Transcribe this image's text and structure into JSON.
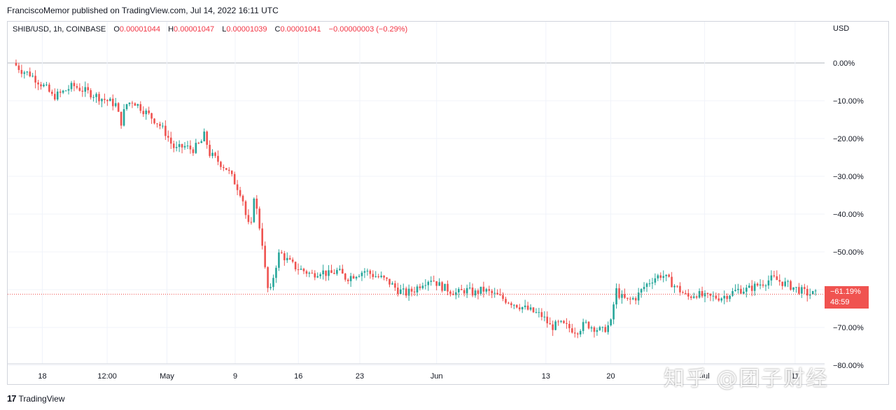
{
  "header": {
    "published": "FranciscoMemor published on TradingView.com, Jul 14, 2022 16:11 UTC"
  },
  "legend": {
    "symbol": "SHIB/USD, 1h, COINBASE",
    "o_label": "O",
    "o_value": "0.00001044",
    "h_label": "H",
    "h_value": "0.00001047",
    "l_label": "L",
    "l_value": "0.00001039",
    "c_label": "C",
    "c_value": "0.00001041",
    "change": "−0.00000003 (−0.29%)"
  },
  "price_tag": {
    "percent": "−61.19%",
    "countdown": "48:59",
    "color": "#f05350"
  },
  "footer": {
    "brand": "TradingView"
  },
  "watermark": {
    "text": "知乎 @团子财经"
  },
  "colors": {
    "up": "#26a69a",
    "down": "#ef5350",
    "grid": "#f0f3fa"
  },
  "chart_data": {
    "type": "line",
    "style": "candlestick",
    "yunit": "USD",
    "yscale": "percent",
    "ylim": [
      -80,
      5
    ],
    "y_ticks": [
      {
        "value": 0,
        "label": "0.00%"
      },
      {
        "value": -10,
        "label": "−10.00%"
      },
      {
        "value": -20,
        "label": "−20.00%"
      },
      {
        "value": -30,
        "label": "−30.00%"
      },
      {
        "value": -40,
        "label": "−40.00%"
      },
      {
        "value": -50,
        "label": "−50.00%"
      },
      {
        "value": -60,
        "label": "−60.00%"
      },
      {
        "value": -70,
        "label": "−70.00%"
      },
      {
        "value": -80,
        "label": "−80.00%"
      }
    ],
    "x_ticks": [
      {
        "t": 1.7,
        "label": "18"
      },
      {
        "t": 5.5,
        "label": "12:00"
      },
      {
        "t": 9.0,
        "label": "May"
      },
      {
        "t": 13.0,
        "label": "9"
      },
      {
        "t": 16.7,
        "label": "16"
      },
      {
        "t": 20.3,
        "label": "23"
      },
      {
        "t": 24.8,
        "label": "Jun"
      },
      {
        "t": 31.2,
        "label": "13"
      },
      {
        "t": 35.0,
        "label": "20"
      },
      {
        "t": 40.5,
        "label": "Jul"
      },
      {
        "t": 45.8,
        "label": "11"
      }
    ],
    "xlim": [
      0,
      47.2
    ],
    "x": [
      0,
      0.5,
      1,
      1.5,
      2,
      2.3,
      2.8,
      3.5,
      4,
      4.5,
      5,
      5.5,
      6,
      6.3,
      6.6,
      7,
      7.5,
      8,
      8.5,
      9,
      9.2,
      9.5,
      10,
      10.5,
      11,
      11.2,
      11.5,
      12,
      12.5,
      12.9,
      13.4,
      13.6,
      13.9,
      14.1,
      14.3,
      14.6,
      14.8,
      15,
      15.3,
      15.6,
      16,
      16.5,
      17,
      17.5,
      18,
      18.5,
      19,
      19.5,
      20,
      20.6,
      21,
      21.6,
      22,
      22.5,
      23,
      23.5,
      24,
      24.5,
      25,
      25.5,
      26,
      26.5,
      27,
      27.5,
      28,
      28.5,
      29,
      29.5,
      30,
      30.5,
      31,
      31.5,
      32,
      32.5,
      33,
      33.5,
      34,
      34.5,
      35,
      35.3,
      35.6,
      36,
      36.5,
      37,
      37.5,
      38,
      38.5,
      39,
      39.5,
      40,
      40.5,
      41,
      41.5,
      42,
      42.5,
      43,
      43.5,
      44,
      44.5,
      45,
      45.5,
      46,
      46.5,
      47
    ],
    "series": [
      {
        "values": [
          0,
          -2,
          -3,
          -5,
          -7,
          -9,
          -8,
          -6,
          -7,
          -8,
          -9,
          -10,
          -11,
          -16,
          -11,
          -10,
          -12,
          -14,
          -16,
          -19,
          -21,
          -23,
          -22,
          -23,
          -21,
          -19,
          -24,
          -26,
          -28,
          -31,
          -35,
          -40,
          -45,
          -35,
          -40,
          -48,
          -57,
          -62,
          -55,
          -50,
          -52,
          -54,
          -55,
          -56,
          -55,
          -56,
          -55,
          -57,
          -56,
          -55,
          -56,
          -57,
          -58,
          -60,
          -61,
          -60,
          -58,
          -57,
          -59,
          -60,
          -61,
          -60,
          -61,
          -60,
          -61,
          -62,
          -63,
          -64,
          -65,
          -66,
          -67,
          -70,
          -69,
          -70,
          -71,
          -69,
          -70,
          -71,
          -69,
          -60,
          -62,
          -63,
          -62,
          -59,
          -57,
          -56,
          -58,
          -60,
          -62,
          -61,
          -62,
          -62,
          -62,
          -61,
          -60,
          -60,
          -59,
          -58,
          -57,
          -58,
          -59,
          -60,
          -61,
          -61.2
        ]
      }
    ]
  }
}
